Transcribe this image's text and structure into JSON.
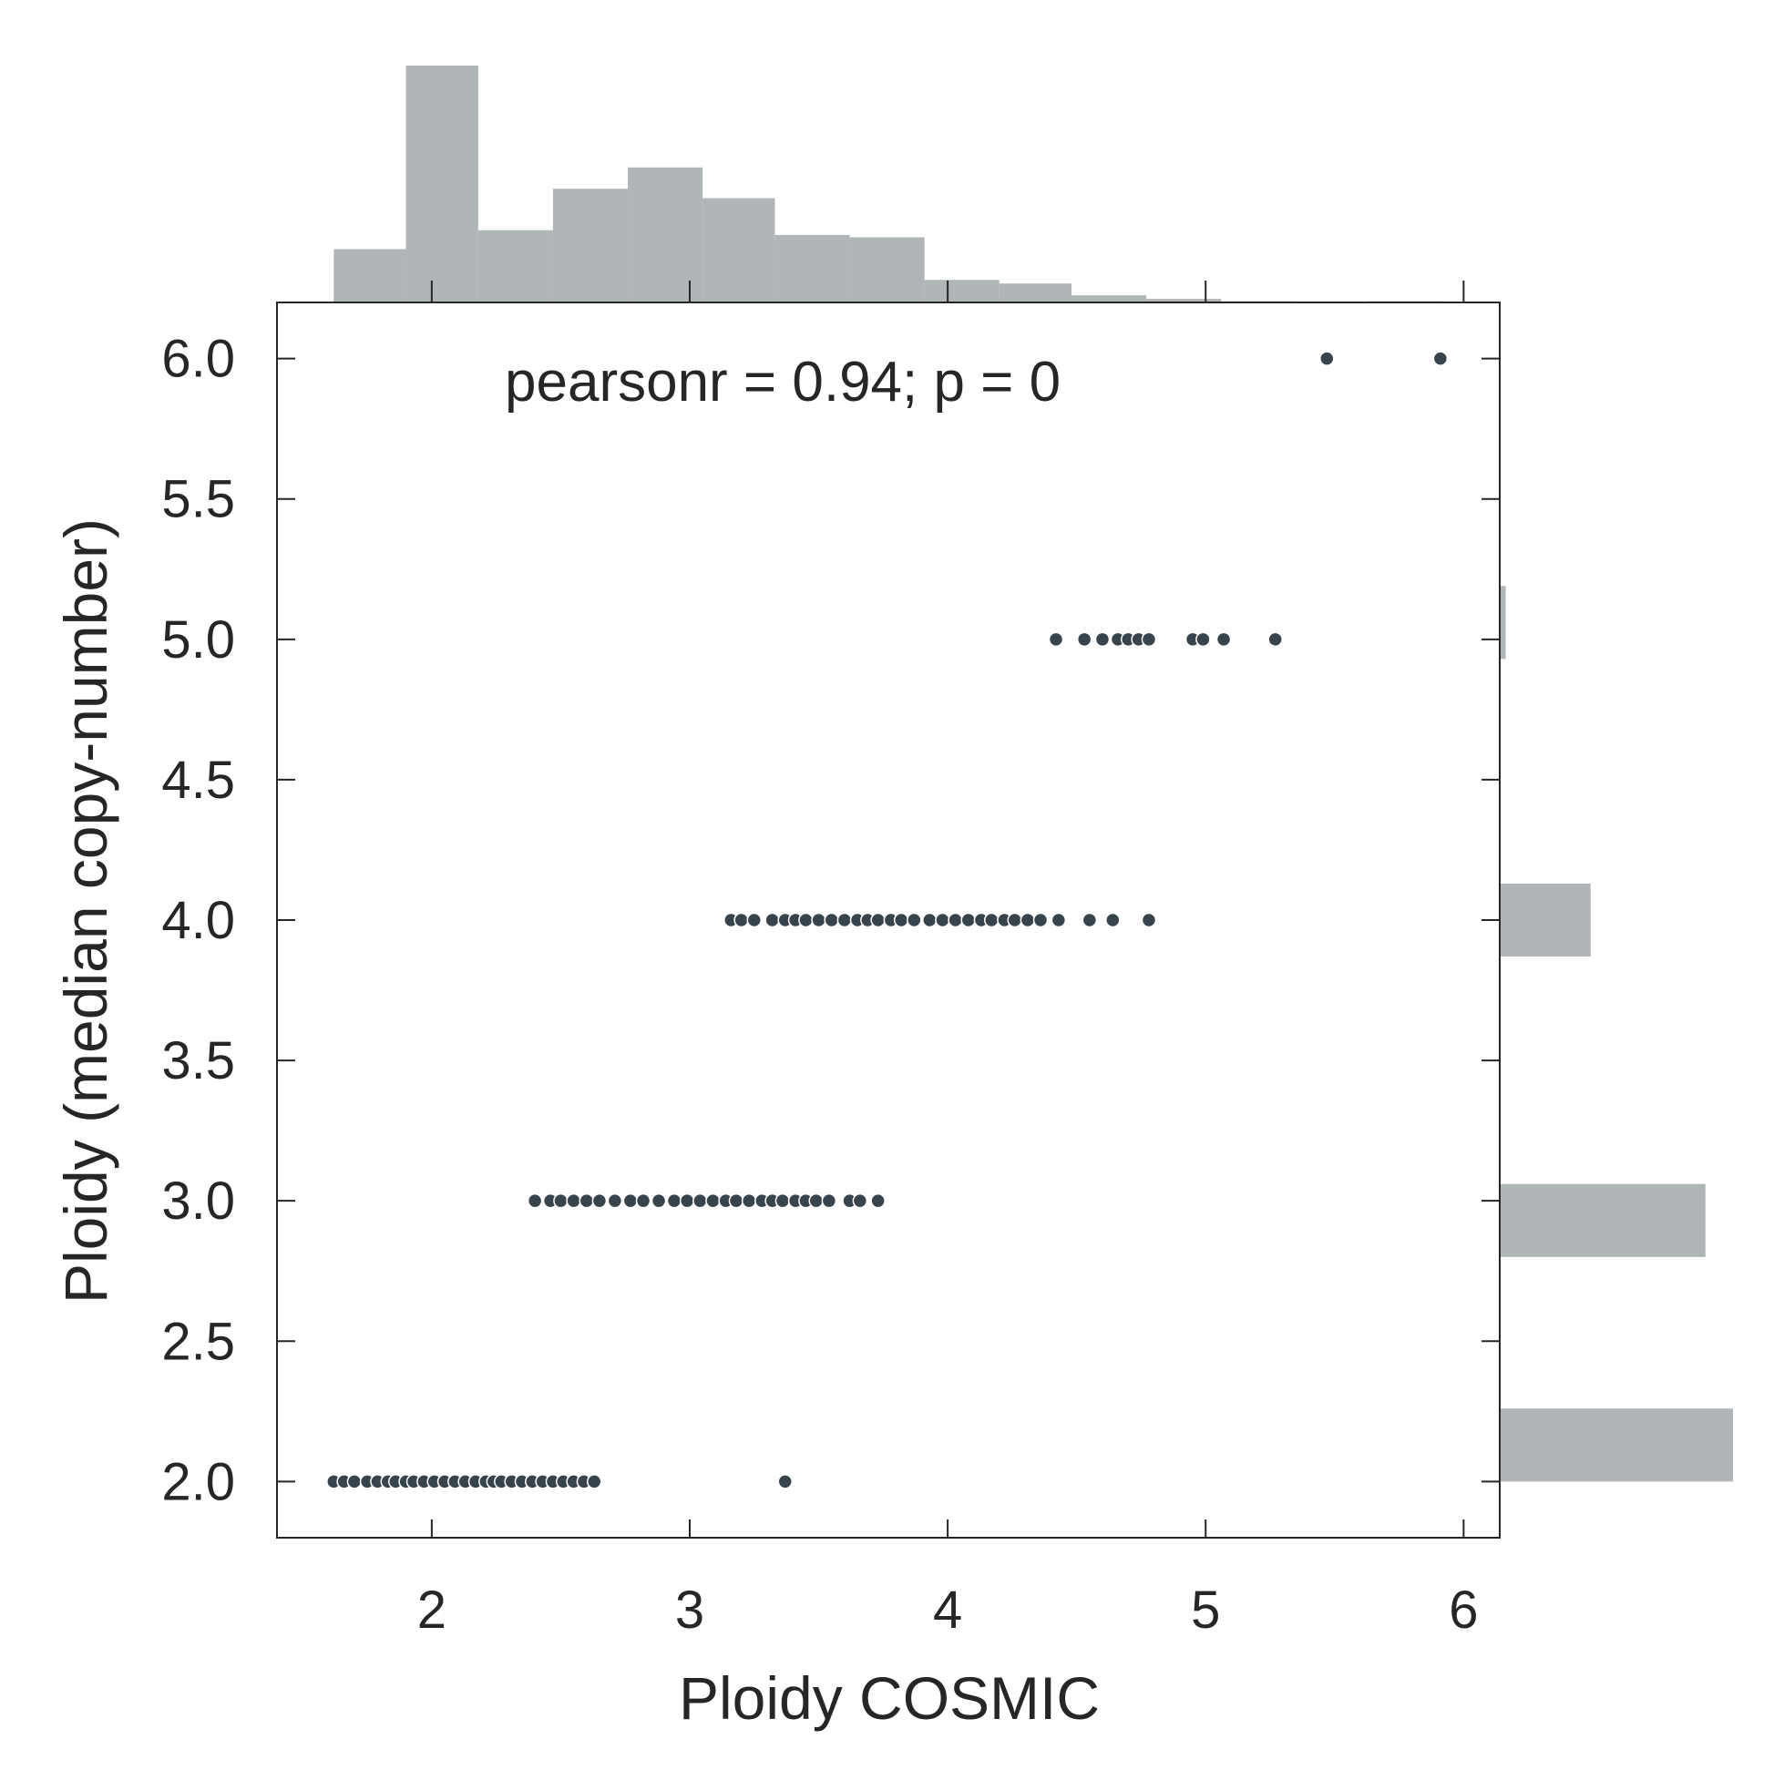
{
  "chart_data": {
    "type": "scatter",
    "xlabel": "Ploidy COSMIC",
    "ylabel": "Ploidy (median copy-number)",
    "annotation": "pearsonr = 0.94; p = 0",
    "xlim": [
      1.4,
      6.14
    ],
    "ylim": [
      1.8,
      6.2
    ],
    "x_ticks": [
      2,
      3,
      4,
      5,
      6
    ],
    "x_tick_labels": [
      "2",
      "3",
      "4",
      "5",
      "6"
    ],
    "y_ticks": [
      2.0,
      2.5,
      3.0,
      3.5,
      4.0,
      4.5,
      5.0,
      5.5,
      6.0
    ],
    "y_tick_labels": [
      "2.0",
      "2.5",
      "3.0",
      "3.5",
      "4.0",
      "4.5",
      "5.0",
      "5.5",
      "6.0"
    ],
    "colors": {
      "points": "#37444c",
      "hist": "#b0b5b7",
      "axis": "#262626"
    },
    "points": [
      [
        1.62,
        2
      ],
      [
        1.66,
        2
      ],
      [
        1.7,
        2
      ],
      [
        1.75,
        2
      ],
      [
        1.79,
        2
      ],
      [
        1.83,
        2
      ],
      [
        1.86,
        2
      ],
      [
        1.9,
        2
      ],
      [
        1.93,
        2
      ],
      [
        1.97,
        2
      ],
      [
        2.01,
        2
      ],
      [
        2.05,
        2
      ],
      [
        2.09,
        2
      ],
      [
        2.13,
        2
      ],
      [
        2.17,
        2
      ],
      [
        2.21,
        2
      ],
      [
        2.24,
        2
      ],
      [
        2.27,
        2
      ],
      [
        2.31,
        2
      ],
      [
        2.35,
        2
      ],
      [
        2.39,
        2
      ],
      [
        2.43,
        2
      ],
      [
        2.47,
        2
      ],
      [
        2.51,
        2
      ],
      [
        2.55,
        2
      ],
      [
        2.59,
        2
      ],
      [
        2.63,
        2
      ],
      [
        3.37,
        2
      ],
      [
        2.4,
        3
      ],
      [
        2.46,
        3
      ],
      [
        2.5,
        3
      ],
      [
        2.55,
        3
      ],
      [
        2.6,
        3
      ],
      [
        2.65,
        3
      ],
      [
        2.71,
        3
      ],
      [
        2.77,
        3
      ],
      [
        2.82,
        3
      ],
      [
        2.88,
        3
      ],
      [
        2.94,
        3
      ],
      [
        2.99,
        3
      ],
      [
        3.04,
        3
      ],
      [
        3.09,
        3
      ],
      [
        3.14,
        3
      ],
      [
        3.18,
        3
      ],
      [
        3.23,
        3
      ],
      [
        3.28,
        3
      ],
      [
        3.32,
        3
      ],
      [
        3.36,
        3
      ],
      [
        3.41,
        3
      ],
      [
        3.45,
        3
      ],
      [
        3.49,
        3
      ],
      [
        3.54,
        3
      ],
      [
        3.62,
        3
      ],
      [
        3.66,
        3
      ],
      [
        3.73,
        3
      ],
      [
        3.16,
        4
      ],
      [
        3.2,
        4
      ],
      [
        3.25,
        4
      ],
      [
        3.32,
        4
      ],
      [
        3.37,
        4
      ],
      [
        3.41,
        4
      ],
      [
        3.45,
        4
      ],
      [
        3.5,
        4
      ],
      [
        3.55,
        4
      ],
      [
        3.6,
        4
      ],
      [
        3.65,
        4
      ],
      [
        3.69,
        4
      ],
      [
        3.73,
        4
      ],
      [
        3.78,
        4
      ],
      [
        3.82,
        4
      ],
      [
        3.87,
        4
      ],
      [
        3.93,
        4
      ],
      [
        3.98,
        4
      ],
      [
        4.03,
        4
      ],
      [
        4.08,
        4
      ],
      [
        4.13,
        4
      ],
      [
        4.17,
        4
      ],
      [
        4.22,
        4
      ],
      [
        4.26,
        4
      ],
      [
        4.31,
        4
      ],
      [
        4.36,
        4
      ],
      [
        4.43,
        4
      ],
      [
        4.55,
        4
      ],
      [
        4.64,
        4
      ],
      [
        4.78,
        4
      ],
      [
        4.42,
        5
      ],
      [
        4.53,
        5
      ],
      [
        4.6,
        5
      ],
      [
        4.66,
        5
      ],
      [
        4.7,
        5
      ],
      [
        4.74,
        5
      ],
      [
        4.78,
        5
      ],
      [
        4.95,
        5
      ],
      [
        4.99,
        5
      ],
      [
        5.07,
        5
      ],
      [
        5.27,
        5
      ],
      [
        5.47,
        6
      ],
      [
        5.91,
        6
      ]
    ],
    "x_hist": {
      "bin_edges": [
        1.62,
        1.9,
        2.18,
        2.47,
        2.76,
        3.05,
        3.33,
        3.62,
        3.91,
        4.2,
        4.48,
        4.77,
        5.06,
        5.35,
        5.63,
        5.92
      ],
      "heights": [
        45,
        200,
        61,
        96,
        114,
        88,
        57,
        55,
        19,
        16,
        6,
        3,
        1,
        0,
        1
      ]
    },
    "y_hist": {
      "bins": [
        {
          "lo": 2.0,
          "hi": 2.26,
          "height": 195
        },
        {
          "lo": 2.8,
          "hi": 3.06,
          "height": 172
        },
        {
          "lo": 3.87,
          "hi": 4.13,
          "height": 76
        },
        {
          "lo": 4.93,
          "hi": 5.19,
          "height": 5
        }
      ]
    }
  }
}
